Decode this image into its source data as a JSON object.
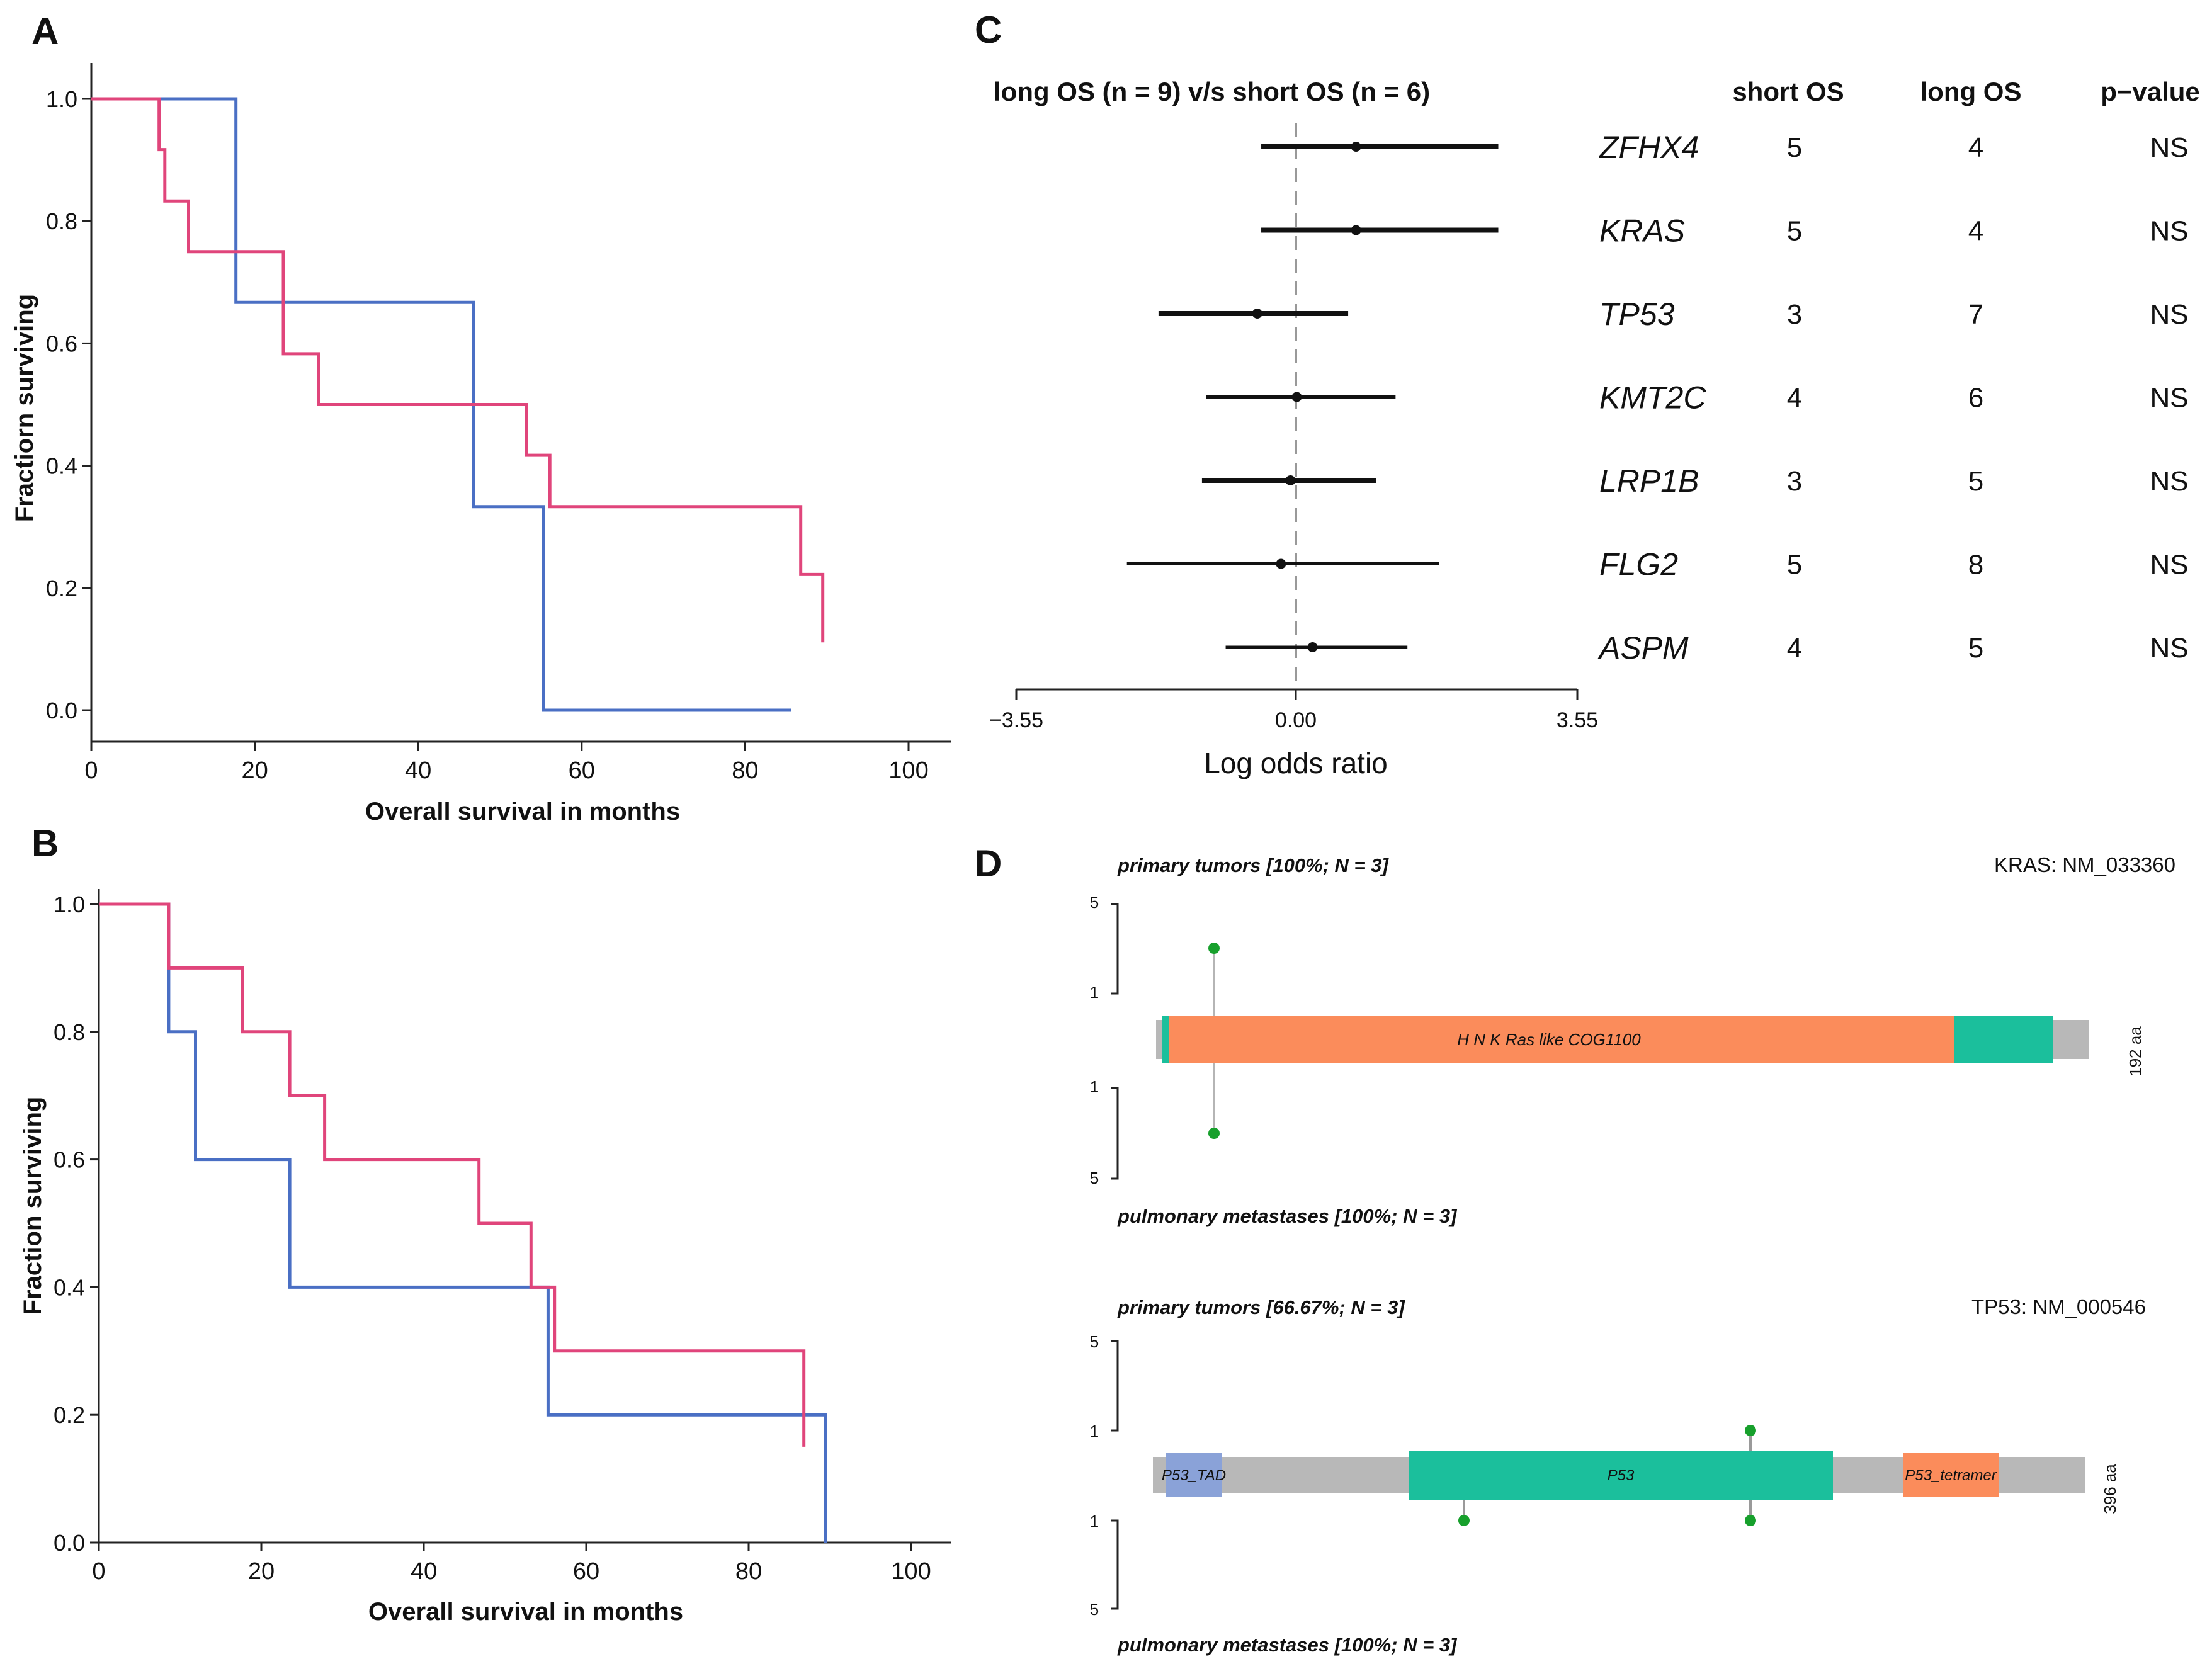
{
  "panels": {
    "A": {
      "letter": "A",
      "chart_data": {
        "type": "line",
        "subtype": "kaplan-meier-step",
        "xlabel": "Overall survival in months",
        "ylabel": "Fractiorn surviving",
        "xlim": [
          0,
          100
        ],
        "ylim": [
          0,
          1
        ],
        "x_ticks": [
          "0",
          "20",
          "40",
          "60",
          "80",
          "100"
        ],
        "y_ticks": [
          "0.0",
          "0.2",
          "0.4",
          "0.6",
          "0.8",
          "1.0"
        ],
        "series": [
          {
            "name": "blue",
            "color": "#4a6fc4",
            "x": [
              0,
              17.7,
              17.7,
              46.8,
              46.8,
              55.3,
              55.3,
              85.6
            ],
            "y": [
              1,
              1,
              0.667,
              0.667,
              0.333,
              0.333,
              0,
              0
            ]
          },
          {
            "name": "pink",
            "color": "#e0457b",
            "x": [
              0,
              8.3,
              8.3,
              8.6,
              8.6,
              9,
              9,
              11.9,
              11.9,
              23.5,
              23.5,
              27.8,
              27.8,
              53.2,
              53.2,
              56.1,
              56.1,
              86.8,
              86.8,
              89.5,
              89.5
            ],
            "y": [
              1,
              1,
              0.917,
              0.917,
              0.917,
              0.917,
              0.833,
              0.833,
              0.75,
              0.75,
              0.583,
              0.583,
              0.5,
              0.5,
              0.417,
              0.417,
              0.333,
              0.333,
              0.222,
              0.222,
              0.111
            ]
          }
        ]
      }
    },
    "B": {
      "letter": "B",
      "chart_data": {
        "type": "line",
        "subtype": "kaplan-meier-step",
        "xlabel": "Overall survival in months",
        "ylabel": "Fraction surviving",
        "xlim": [
          0,
          100
        ],
        "ylim": [
          0,
          1
        ],
        "x_ticks": [
          "0",
          "20",
          "40",
          "60",
          "80",
          "100"
        ],
        "y_ticks": [
          "0.0",
          "0.2",
          "0.4",
          "0.6",
          "0.8",
          "1.0"
        ],
        "series": [
          {
            "name": "blue",
            "color": "#4a6fc4",
            "x": [
              0,
              8.6,
              8.6,
              11.9,
              11.9,
              23.5,
              23.5,
              55.3,
              55.3,
              89.5,
              89.5
            ],
            "y": [
              1,
              1,
              0.8,
              0.8,
              0.6,
              0.6,
              0.4,
              0.4,
              0.2,
              0.2,
              0
            ]
          },
          {
            "name": "pink",
            "color": "#e0457b",
            "x": [
              0,
              8.6,
              8.6,
              17.7,
              17.7,
              23.5,
              23.5,
              27.8,
              27.8,
              46.8,
              46.8,
              53.2,
              53.2,
              56.1,
              56.1,
              86.8,
              86.8
            ],
            "y": [
              1,
              1,
              0.9,
              0.9,
              0.8,
              0.8,
              0.7,
              0.7,
              0.6,
              0.6,
              0.5,
              0.5,
              0.4,
              0.4,
              0.3,
              0.3,
              0.15
            ]
          }
        ]
      }
    },
    "C": {
      "letter": "C",
      "title": "long OS (n = 9) v/s short OS (n = 6)",
      "col_short": "short OS",
      "col_long": "long OS",
      "col_p": "p−value",
      "chart_data": {
        "type": "forest",
        "xlabel": "Log odds ratio",
        "xlim": [
          -3.55,
          3.55
        ],
        "x_ticks": [
          "−3.55",
          "0.00",
          "3.55"
        ],
        "rows": [
          {
            "gene": "ZFHX4",
            "or": 0.75,
            "lo": -0.45,
            "hi": 2.55,
            "short": "5",
            "long": "4",
            "p": "NS"
          },
          {
            "gene": "KRAS",
            "or": 0.75,
            "lo": -0.45,
            "hi": 2.55,
            "short": "5",
            "long": "4",
            "p": "NS"
          },
          {
            "gene": "TP53",
            "or": -0.5,
            "lo": -1.75,
            "hi": 0.65,
            "short": "3",
            "long": "7",
            "p": "NS"
          },
          {
            "gene": "KMT2C",
            "or": 0.0,
            "lo": -1.15,
            "hi": 1.25,
            "short": "4",
            "long": "6",
            "p": "NS"
          },
          {
            "gene": "LRP1B",
            "or": -0.08,
            "lo": -1.2,
            "hi": 1.0,
            "short": "3",
            "long": "5",
            "p": "NS"
          },
          {
            "gene": "FLG2",
            "or": -0.2,
            "lo": -2.15,
            "hi": 1.8,
            "short": "5",
            "long": "8",
            "p": "NS"
          },
          {
            "gene": "ASPM",
            "or": 0.2,
            "lo": -0.9,
            "hi": 1.4,
            "short": "4",
            "long": "5",
            "p": "NS"
          }
        ]
      }
    },
    "D": {
      "letter": "D",
      "kras": {
        "top_label": "primary tumors [100%; N = 3]",
        "bottom_label": "pulmonary metastases [100%; N = 3]",
        "gene": "KRAS: NM_033360",
        "length": "192 aa",
        "domain": "H N K Ras like  COG1100",
        "ticks_top": [
          "5",
          "1"
        ],
        "ticks_bottom": [
          "1",
          "5"
        ]
      },
      "tp53": {
        "top_label": "primary tumors [66.67%; N = 3]",
        "bottom_label": "pulmonary metastases [100%; N = 3]",
        "gene": "TP53: NM_000546",
        "length": "396 aa",
        "domain1": "P53_TAD",
        "domain2": "P53",
        "domain3": "P53_tetramer",
        "ticks_top": [
          "5",
          "1"
        ],
        "ticks_bottom": [
          "1",
          "5"
        ]
      }
    }
  }
}
